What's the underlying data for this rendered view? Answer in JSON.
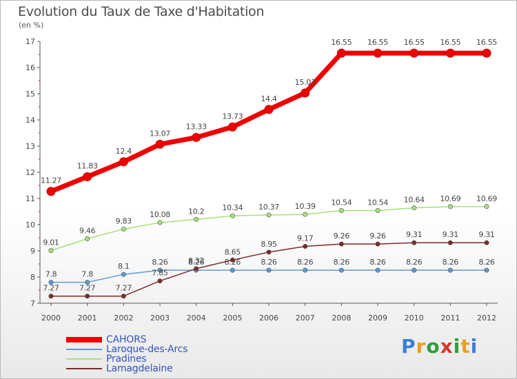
{
  "header": {
    "title": "Evolution du Taux de Taxe d'Habitation",
    "unit": "(en %)"
  },
  "logo": {
    "text": "Proxiti",
    "letter_colors": [
      "#3a7fd5",
      "#e8a020",
      "#2f9e3a",
      "#d43a2a",
      "#2f9e3a",
      "#e8a020",
      "#3a7fd5"
    ]
  },
  "chart_data": {
    "type": "line",
    "title": "Evolution du Taux de Taxe d'Habitation",
    "ylabel": "(en %)",
    "xlabel": "",
    "x": [
      "2000",
      "2001",
      "2002",
      "2003",
      "2004",
      "2005",
      "2006",
      "2007",
      "2008",
      "2009",
      "2010",
      "2011",
      "2012"
    ],
    "ylim": [
      7,
      17
    ],
    "yticks": [
      7,
      8,
      9,
      10,
      11,
      12,
      13,
      14,
      15,
      16,
      17
    ],
    "grid": false,
    "legend_position": "bottom-left",
    "series": [
      {
        "name": "CAHORS",
        "color": "#ee0000",
        "style": "thick",
        "values": [
          11.27,
          11.83,
          12.4,
          13.07,
          13.33,
          13.73,
          14.4,
          15.03,
          16.55,
          16.55,
          16.55,
          16.55,
          16.55
        ],
        "labels": [
          "11.27",
          "11.83",
          "12.4",
          "13.07",
          "13.33",
          "13.73",
          "14.4",
          "15.03",
          "16.55",
          "16.55",
          "16.55",
          "16.55",
          "16.55"
        ]
      },
      {
        "name": "Laroque-des-Arcs",
        "color": "#5a9bd5",
        "style": "thin",
        "values": [
          7.8,
          7.8,
          8.1,
          8.26,
          8.26,
          8.26,
          8.26,
          8.26,
          8.26,
          8.26,
          8.26,
          8.26,
          8.26
        ],
        "labels": [
          "7.8",
          "7.8",
          "8.1",
          "8.26",
          "8.26",
          "8.26",
          "8.26",
          "8.26",
          "8.26",
          "8.26",
          "8.26",
          "8.26",
          "8.26"
        ]
      },
      {
        "name": "Pradines",
        "color": "#a6e07a",
        "style": "thin",
        "values": [
          9.01,
          9.46,
          9.83,
          10.08,
          10.2,
          10.34,
          10.37,
          10.39,
          10.54,
          10.54,
          10.64,
          10.69,
          10.69
        ],
        "labels": [
          "9.01",
          "9.46",
          "9.83",
          "10.08",
          "10.2",
          "10.34",
          "10.37",
          "10.39",
          "10.54",
          "10.54",
          "10.64",
          "10.69",
          "10.69"
        ]
      },
      {
        "name": "Lamagdelaine",
        "color": "#7a2a2a",
        "style": "thin",
        "values": [
          7.27,
          7.27,
          7.27,
          7.85,
          8.32,
          8.65,
          8.95,
          9.17,
          9.26,
          9.26,
          9.31,
          9.31,
          9.31
        ],
        "labels": [
          "7.27",
          "7.27",
          "7.27",
          "7.85",
          "8.32",
          "8.65",
          "8.95",
          "9.17",
          "9.26",
          "9.26",
          "9.31",
          "9.31",
          "9.31"
        ]
      }
    ]
  }
}
